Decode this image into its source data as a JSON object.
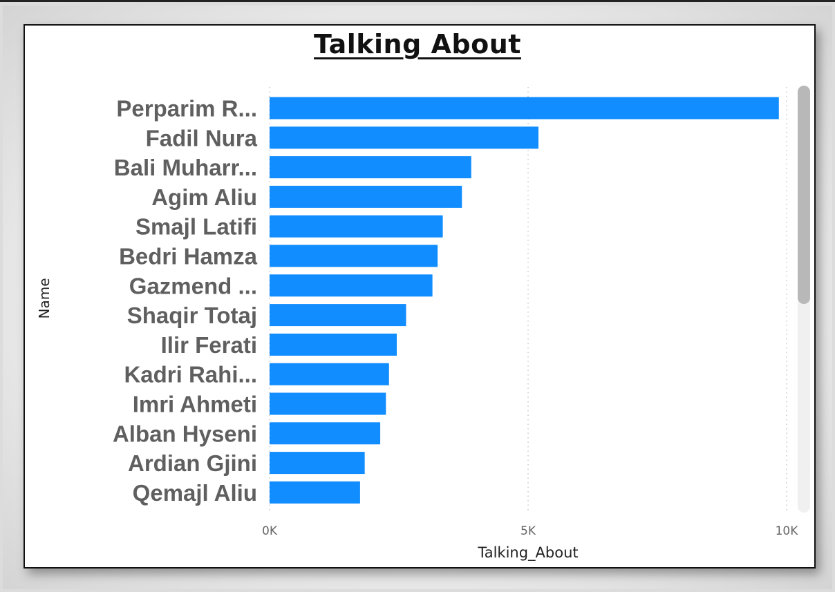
{
  "chart_data": {
    "type": "bar",
    "orientation": "horizontal",
    "title": "Talking About",
    "xlabel": "Talking_About",
    "ylabel": "Name",
    "xlim": [
      0,
      10000
    ],
    "x_ticks": [
      0,
      5000,
      10000
    ],
    "x_tick_labels": [
      "0K",
      "5K",
      "10K"
    ],
    "grid": true,
    "bar_color": "#118DFF",
    "categories": [
      "Perparim R...",
      "Fadil Nura",
      "Bali Muharr...",
      "Agim Aliu",
      "Smajl Latifi",
      "Bedri Hamza",
      "Gazmend ...",
      "Shaqir Totaj",
      "Ilir Ferati",
      "Kadri Rahi...",
      "Imri Ahmeti",
      "Alban Hyseni",
      "Ardian Gjini",
      "Qemajl Aliu"
    ],
    "values": [
      9850,
      5200,
      3900,
      3720,
      3350,
      3250,
      3150,
      2640,
      2460,
      2310,
      2250,
      2140,
      1840,
      1750
    ]
  },
  "colors": {
    "bar": "#118DFF",
    "label": "#5f5f5f",
    "card_border": "#111111"
  },
  "scrollbar": {
    "visible_fraction": 0.51
  }
}
